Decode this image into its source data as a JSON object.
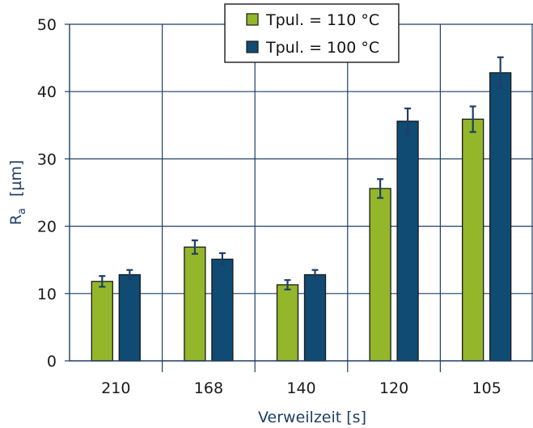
{
  "chart_data": {
    "type": "bar",
    "categories": [
      "210",
      "168",
      "140",
      "120",
      "105"
    ],
    "series": [
      {
        "name": "Tpul. = 110 °C",
        "color": "#93b62b",
        "values": [
          11.8,
          16.9,
          11.3,
          25.6,
          35.9
        ],
        "errors": [
          0.8,
          1.0,
          0.7,
          1.4,
          1.9
        ]
      },
      {
        "name": "Tpul. = 100 °C",
        "color": "#0f4b73",
        "values": [
          12.8,
          15.1,
          12.8,
          35.6,
          42.8
        ],
        "errors": [
          0.7,
          0.9,
          0.7,
          1.9,
          2.3
        ]
      }
    ],
    "xlabel": "Verweilzeit   [s]",
    "ylabel_main": "R",
    "ylabel_sub": "a",
    "ylabel_unit": "[µm]",
    "ylim": [
      0,
      50
    ],
    "yticks": [
      "0",
      "10",
      "20",
      "30",
      "40",
      "50"
    ],
    "grid": true,
    "legend_position": "top-center",
    "colors": {
      "grid": "#1f3f66",
      "axis": "#1f3f66",
      "error_bar": "#1f3f66"
    }
  }
}
